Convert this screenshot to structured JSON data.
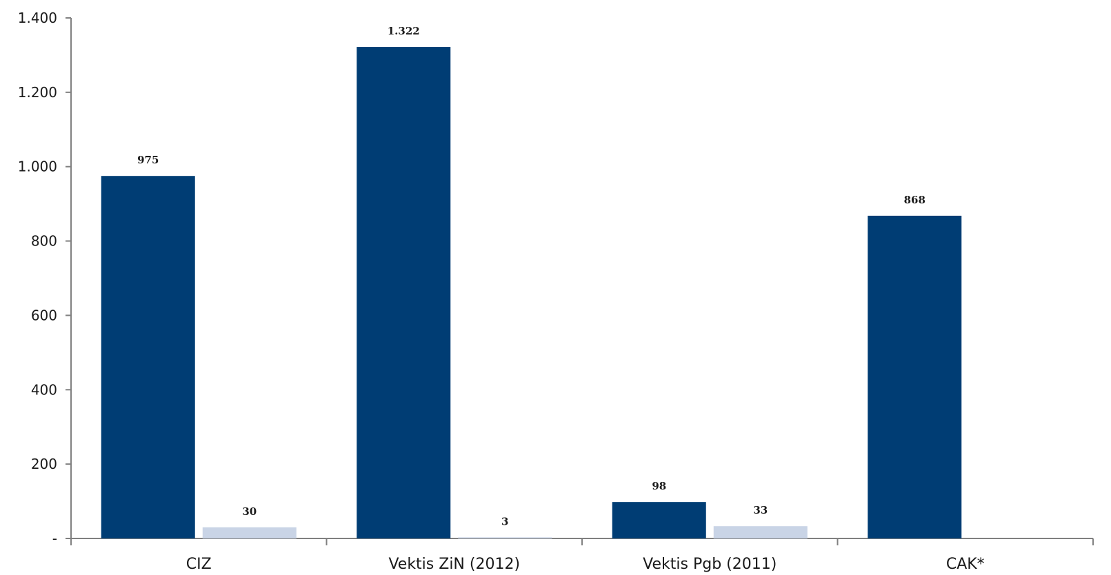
{
  "chart_data": {
    "type": "bar",
    "title": "",
    "xlabel": "",
    "ylabel": "",
    "categories": [
      "CIZ",
      "Vektis ZiN (2012)",
      "Vektis Pgb (2011)",
      "CAK*"
    ],
    "series": [
      {
        "values": [
          975,
          1322,
          98,
          868
        ],
        "labels": [
          "975",
          "1.322",
          "98",
          "868"
        ],
        "color": "#003d74"
      },
      {
        "values": [
          30,
          3,
          33,
          null
        ],
        "labels": [
          "30",
          "3",
          "33",
          null
        ],
        "color": "#c9d4e6"
      }
    ],
    "ylim": [
      0,
      1400
    ],
    "yticks": [
      0,
      200,
      400,
      600,
      800,
      1000,
      1200,
      1400
    ],
    "ytick_labels": [
      "-",
      "200",
      "400",
      "600",
      "800",
      "1.000",
      "1.200",
      "1.400"
    ],
    "grid": false,
    "legend": "none"
  }
}
